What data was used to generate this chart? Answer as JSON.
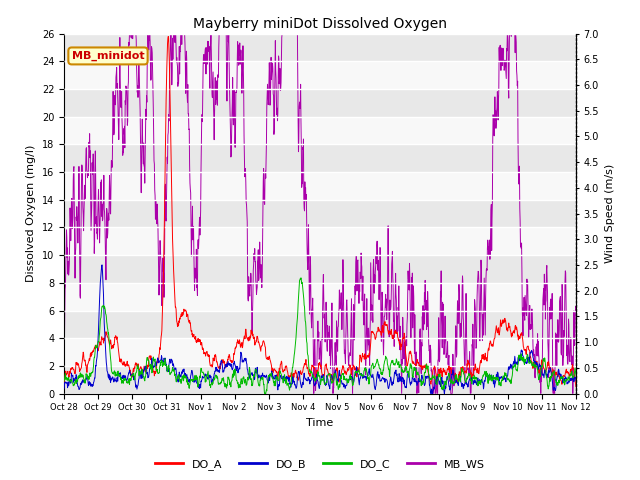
{
  "title": "Mayberry miniDot Dissolved Oxygen",
  "xlabel": "Time",
  "ylabel_left": "Dissolved Oxygen (mg/l)",
  "ylabel_right": "Wind Speed (m/s)",
  "ylim_left": [
    0,
    26
  ],
  "ylim_right": [
    0.0,
    7.0
  ],
  "yticks_left": [
    0,
    2,
    4,
    6,
    8,
    10,
    12,
    14,
    16,
    18,
    20,
    22,
    24,
    26
  ],
  "yticks_right": [
    0.0,
    0.5,
    1.0,
    1.5,
    2.0,
    2.5,
    3.0,
    3.5,
    4.0,
    4.5,
    5.0,
    5.5,
    6.0,
    6.5,
    7.0
  ],
  "xtick_labels": [
    "Oct 28",
    "Oct 29",
    "Oct 30",
    "Oct 31",
    "Nov 1",
    "Nov 2",
    "Nov 3",
    "Nov 4",
    "Nov 5",
    "Nov 6",
    "Nov 7",
    "Nov 8",
    "Nov 9",
    "Nov 10",
    "Nov 11",
    "Nov 12"
  ],
  "colors": {
    "DO_A": "#ff0000",
    "DO_B": "#0000cc",
    "DO_C": "#00bb00",
    "MB_WS": "#aa00aa"
  },
  "annotation_box": {
    "text": "MB_minidot",
    "facecolor": "#ffffcc",
    "edgecolor": "#cc8800",
    "text_color": "#cc0000"
  },
  "background_color": "#ffffff",
  "plot_bg_alternating": [
    "#e8e8e8",
    "#f8f8f8"
  ],
  "grid_color": "#ffffff",
  "linewidth": 0.7,
  "title_fontsize": 10,
  "axis_label_fontsize": 8,
  "tick_fontsize": 7,
  "legend_fontsize": 8
}
